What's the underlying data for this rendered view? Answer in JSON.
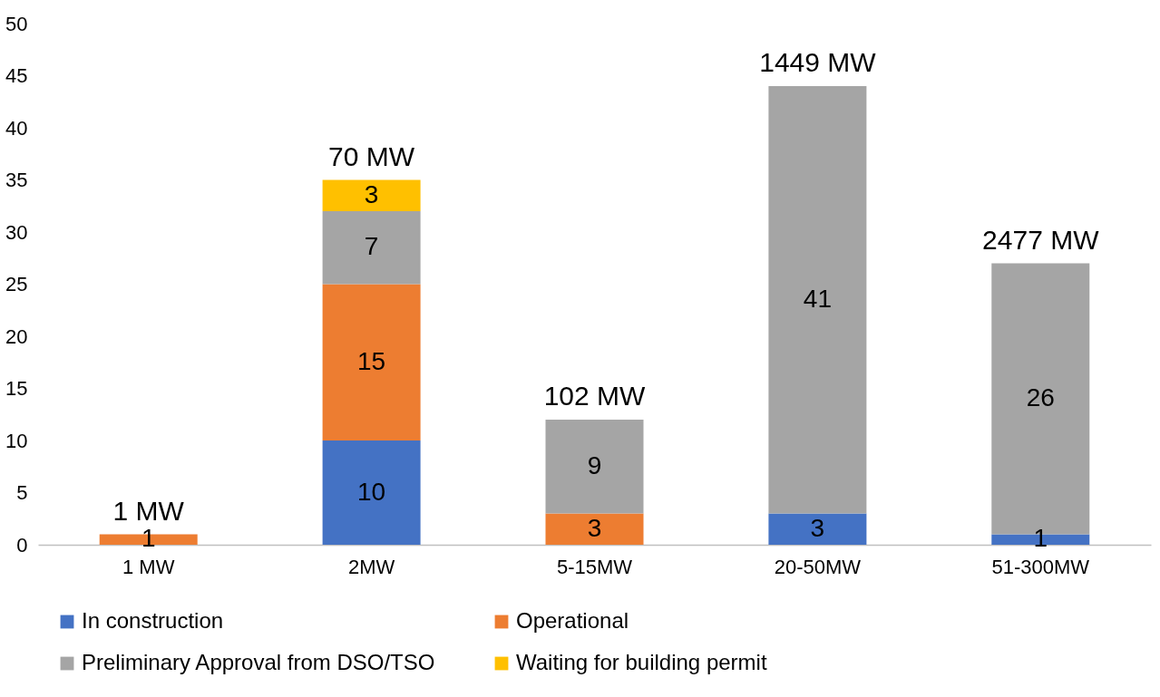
{
  "chart_data": {
    "type": "bar",
    "stacked": true,
    "categories": [
      "1 MW",
      "2MW",
      "5-15MW",
      "20-50MW",
      "51-300MW"
    ],
    "series": [
      {
        "name": "In construction",
        "color": "#4472c4",
        "values": [
          null,
          10,
          null,
          3,
          1
        ]
      },
      {
        "name": "Operational",
        "color": "#ed7d31",
        "values": [
          1,
          15,
          3,
          null,
          null
        ]
      },
      {
        "name": "Preliminary Approval from DSO/TSO",
        "color": "#a5a5a5",
        "values": [
          null,
          7,
          9,
          41,
          26
        ]
      },
      {
        "name": "Waiting for building permit",
        "color": "#ffc000",
        "values": [
          null,
          3,
          null,
          null,
          null
        ]
      }
    ],
    "annotations": [
      {
        "text": "1 MW",
        "x": "1 MW",
        "y": 1
      },
      {
        "text": "70 MW",
        "x": "2MW",
        "y": 35
      },
      {
        "text": "102 MW",
        "x": "5-15MW",
        "y": 12
      },
      {
        "text": "1449 MW",
        "x": "20-50MW",
        "y": 44
      },
      {
        "text": "2477 MW",
        "x": "51-300MW",
        "y": 27
      }
    ],
    "data_labels": true,
    "ylim": [
      0,
      50
    ],
    "yticks": [
      0,
      5,
      10,
      15,
      20,
      25,
      30,
      35,
      40,
      45,
      50
    ],
    "grid": false,
    "legend": "bottom"
  }
}
